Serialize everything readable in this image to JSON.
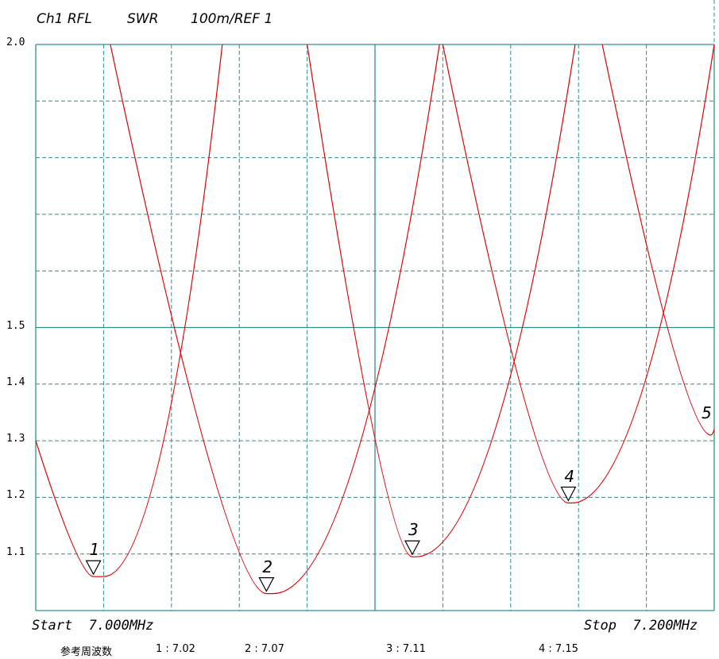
{
  "header": {
    "channel": "Ch1 RFL",
    "param": "SWR",
    "scale": "100m/REF 1"
  },
  "footer": {
    "start_label": "Start  7.000MHz",
    "stop_label": "Stop  7.200MHz",
    "ref_label": "参考周波数",
    "ref_items": [
      "1 : 7.02",
      "2 : 7.07",
      "3 : 7.11",
      "4 : 7.15"
    ]
  },
  "colors": {
    "trace": "#e00000",
    "grid": "#2f8f8f"
  },
  "chart_data": {
    "type": "line",
    "xlim": [
      7.0,
      7.2
    ],
    "ylim": [
      1.0,
      2.0
    ],
    "grid": true,
    "ytick_labels": [
      "2.0",
      "1.5",
      "1.4",
      "1.3",
      "1.2",
      "1.1"
    ],
    "ytick_values": [
      2.0,
      1.5,
      1.4,
      1.3,
      1.2,
      1.1
    ],
    "series": [
      {
        "x": [
          7.0,
          7.017,
          7.02,
          7.055
        ],
        "y": [
          1.3,
          1.06,
          1.06,
          2.0
        ]
      },
      {
        "x": [
          7.022,
          7.068,
          7.07,
          7.119
        ],
        "y": [
          2.0,
          1.03,
          1.03,
          2.0
        ]
      },
      {
        "x": [
          7.08,
          7.111,
          7.112,
          7.159
        ],
        "y": [
          2.0,
          1.095,
          1.095,
          2.0
        ]
      },
      {
        "x": [
          7.12,
          7.157,
          7.158,
          7.2
        ],
        "y": [
          2.0,
          1.19,
          1.19,
          2.0
        ]
      },
      {
        "x": [
          7.167,
          7.199,
          7.2
        ],
        "y": [
          2.0,
          1.31,
          1.32
        ]
      }
    ],
    "markers": [
      {
        "label": "1",
        "x": 7.017,
        "y": 1.06
      },
      {
        "label": "2",
        "x": 7.068,
        "y": 1.03
      },
      {
        "label": "3",
        "x": 7.111,
        "y": 1.095
      },
      {
        "label": "4",
        "x": 7.157,
        "y": 1.19
      },
      {
        "label": "5",
        "x": 7.2,
        "y": 1.31
      }
    ]
  }
}
